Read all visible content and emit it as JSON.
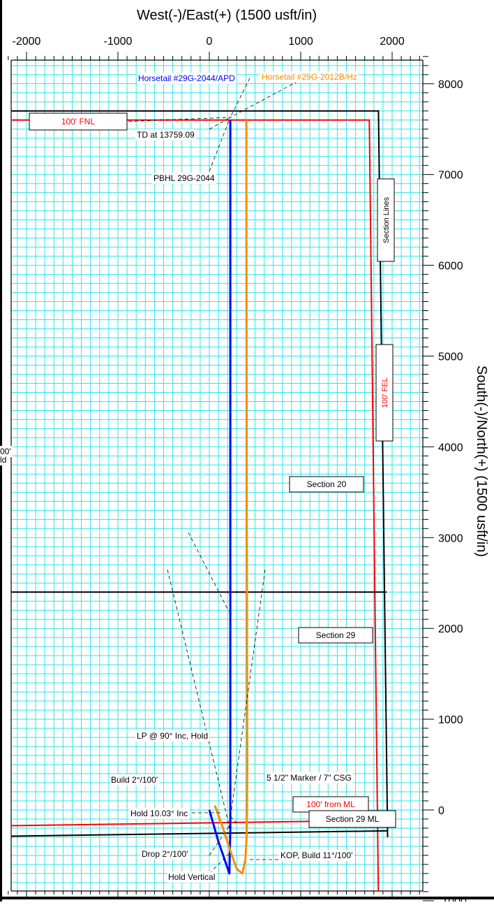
{
  "chart_data": {
    "type": "line",
    "title": "",
    "xlabel": "West(-)/East(+) (1500 usft/in)",
    "ylabel": "South(-)/North(+) (1500 usft/in)",
    "xlim": [
      -2200,
      2300
    ],
    "ylim": [
      -1100,
      8300
    ],
    "xticks": [
      -2000,
      -1000,
      0,
      1000,
      2000
    ],
    "xtick_labels": [
      "-2000",
      "-1000",
      "0",
      "1000",
      "2000"
    ],
    "yticks": [
      -1000,
      0,
      1000,
      2000,
      3000,
      4000,
      5000,
      6000,
      7000,
      8000
    ],
    "ytick_labels": [
      "-1000",
      "0",
      "1000",
      "2000",
      "3000",
      "4000",
      "5000",
      "6000",
      "7000",
      "8000"
    ],
    "grid": true,
    "grid_color": "#2ee6e6",
    "series": [
      {
        "name": "Horsetail #29G-2044/APD",
        "color": "#0000ff",
        "x": [
          0,
          100,
          220,
          230,
          230,
          230
        ],
        "y": [
          0,
          -350,
          -700,
          -200,
          500,
          7600
        ]
      },
      {
        "name": "Horsetail #29G-2012B/Hz",
        "color": "#ff8c00",
        "x": [
          60,
          150,
          230,
          300,
          360,
          395,
          410,
          415,
          412,
          408,
          405,
          405
        ],
        "y": [
          50,
          -200,
          -450,
          -650,
          -700,
          -550,
          -250,
          500,
          2000,
          5000,
          7000,
          7600
        ]
      }
    ],
    "section_lines": [
      {
        "color": "#000000",
        "x": [
          -2300,
          1850,
          1950
        ],
        "y": [
          7700,
          7700,
          -300
        ]
      },
      {
        "color": "#ff0000",
        "x": [
          -2300,
          1750,
          1850
        ],
        "y": [
          7600,
          7600,
          -1000
        ]
      },
      {
        "color": "#000000",
        "x": [
          -2300,
          1940
        ],
        "y": [
          2400,
          2400
        ]
      },
      {
        "color": "#ff0000",
        "x": [
          -2300,
          1900
        ],
        "y": [
          -175,
          -115
        ]
      },
      {
        "color": "#000000",
        "x": [
          -2300,
          1950
        ],
        "y": [
          -290,
          -230
        ]
      }
    ],
    "annotations": [
      {
        "id": "apd-label",
        "text": "Horsetail #29G-2044/APD",
        "color": "#0000ff",
        "boxed": false
      },
      {
        "id": "hz-label",
        "text": "Horsetail #29G-2012B/Hz",
        "color": "#ff8c00",
        "boxed": false
      },
      {
        "id": "fnl-box",
        "text": "100' FNL",
        "color": "#ff0000",
        "boxed": true
      },
      {
        "id": "td-label",
        "text": "TD at 13759.09",
        "color": "#000000",
        "boxed": false
      },
      {
        "id": "pbhl-label",
        "text": "PBHL 29G-2044",
        "color": "#000000",
        "boxed": false
      },
      {
        "id": "section-lines-box",
        "text": "Section Lines",
        "color": "#000000",
        "boxed": true,
        "rotated": true
      },
      {
        "id": "fel-box",
        "text": "100' FEL",
        "color": "#ff0000",
        "boxed": true,
        "rotated": true
      },
      {
        "id": "section20-box",
        "text": "Section 20",
        "color": "#000000",
        "boxed": true
      },
      {
        "id": "section29-box",
        "text": "Section 29",
        "color": "#000000",
        "boxed": true
      },
      {
        "id": "lp-label",
        "text": "LP @ 90° Inc, Hold",
        "color": "#000000",
        "boxed": false
      },
      {
        "id": "build-label",
        "text": "Build 2°/100'",
        "color": "#000000",
        "boxed": false
      },
      {
        "id": "marker-label",
        "text": "5 1/2\" Marker / 7\" CSG",
        "color": "#000000",
        "boxed": false
      },
      {
        "id": "ml-box",
        "text": "100' from ML",
        "color": "#ff0000",
        "boxed": true
      },
      {
        "id": "hold10-label",
        "text": "Hold 10.03° Inc",
        "color": "#000000",
        "boxed": false
      },
      {
        "id": "section29ml-box",
        "text": "Section 29 ML",
        "color": "#000000",
        "boxed": true
      },
      {
        "id": "drop-label",
        "text": "Drop 2°/100'",
        "color": "#000000",
        "boxed": false
      },
      {
        "id": "kop-label",
        "text": "KOP, Build 11°/100'",
        "color": "#000000",
        "boxed": false
      },
      {
        "id": "holdvert-label",
        "text": "Hold Vertical",
        "color": "#000000",
        "boxed": false
      },
      {
        "id": "clip-label-1",
        "text": "00'",
        "color": "#000000",
        "boxed": false
      },
      {
        "id": "clip-label-2",
        "text": "ld",
        "color": "#000000",
        "boxed": false
      }
    ]
  }
}
